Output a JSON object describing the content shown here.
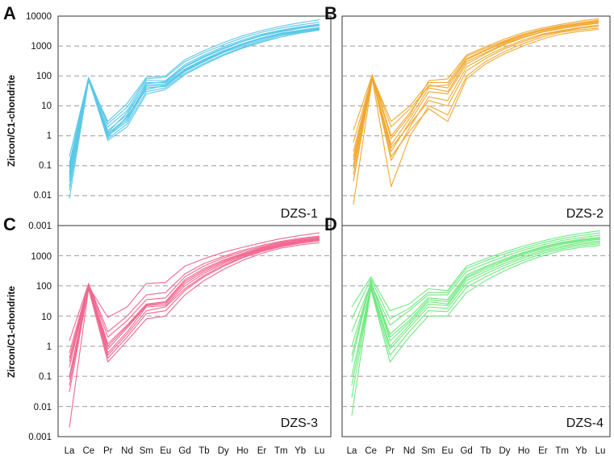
{
  "figure": {
    "y_axis_label": "Zircon/C1-chondrite",
    "y_ticks_top": [
      "10000",
      "1000",
      "100",
      "10",
      "1",
      "0.1",
      "0.01"
    ],
    "y_ticks_bottom": [
      "0.001",
      "1000",
      "100",
      "10",
      "1",
      "0.1",
      "0.01",
      "0.001"
    ],
    "x_ticks": [
      "La",
      "Ce",
      "Pr",
      "Nd",
      "Sm",
      "Eu",
      "Gd",
      "Tb",
      "Dy",
      "Ho",
      "Er",
      "Tm",
      "Yb",
      "Lu"
    ]
  },
  "chart_data": [
    {
      "type": "line",
      "panel_letter": "A",
      "sample": "DZS-1",
      "color": "#5bc8e8",
      "y_scale": "log",
      "ylim": [
        0.001,
        10000
      ],
      "grid": "horizontal dashed",
      "categories": [
        "La",
        "Ce",
        "Pr",
        "Nd",
        "Sm",
        "Eu",
        "Gd",
        "Tb",
        "Dy",
        "Ho",
        "Er",
        "Tm",
        "Yb",
        "Lu"
      ],
      "series": [
        {
          "values": [
            0.008,
            70,
            1.0,
            3.0,
            40,
            45,
            140,
            300,
            600,
            1000,
            1600,
            2400,
            3000,
            3800
          ]
        },
        {
          "values": [
            0.02,
            75,
            1.2,
            4.0,
            50,
            55,
            170,
            360,
            700,
            1200,
            1900,
            2700,
            3400,
            4200
          ]
        },
        {
          "values": [
            0.05,
            80,
            1.5,
            5.0,
            60,
            60,
            200,
            420,
            800,
            1400,
            2200,
            3000,
            3900,
            4800
          ]
        },
        {
          "values": [
            0.1,
            85,
            2.0,
            7.0,
            70,
            70,
            240,
            500,
            950,
            1600,
            2500,
            3400,
            4400,
            5400
          ]
        },
        {
          "values": [
            0.2,
            90,
            2.5,
            9.0,
            80,
            90,
            300,
            600,
            1100,
            1900,
            2900,
            4000,
            5100,
            6300
          ]
        },
        {
          "values": [
            0.03,
            78,
            0.8,
            2.5,
            30,
            40,
            120,
            260,
            520,
            900,
            1450,
            2200,
            2900,
            3600
          ]
        },
        {
          "values": [
            0.06,
            82,
            0.7,
            2.0,
            25,
            35,
            110,
            240,
            480,
            850,
            1350,
            2000,
            2700,
            3400
          ]
        },
        {
          "values": [
            0.12,
            88,
            1.1,
            3.5,
            45,
            50,
            160,
            340,
            670,
            1150,
            1800,
            2600,
            3300,
            4100
          ]
        },
        {
          "values": [
            0.015,
            72,
            3.0,
            12.0,
            90,
            100,
            350,
            700,
            1300,
            2200,
            3300,
            4600,
            6000,
            7500
          ]
        },
        {
          "values": [
            0.04,
            76,
            1.3,
            6.0,
            55,
            65,
            210,
            450,
            850,
            1450,
            2300,
            3200,
            4200,
            5100
          ]
        },
        {
          "values": [
            0.08,
            84,
            0.9,
            4.5,
            35,
            48,
            150,
            320,
            640,
            1100,
            1750,
            2500,
            3200,
            4000
          ]
        }
      ]
    },
    {
      "type": "line",
      "panel_letter": "B",
      "sample": "DZS-2",
      "color": "#f0a830",
      "y_scale": "log",
      "ylim": [
        0.001,
        10000
      ],
      "grid": "horizontal dashed",
      "categories": [
        "La",
        "Ce",
        "Pr",
        "Nd",
        "Sm",
        "Eu",
        "Gd",
        "Tb",
        "Dy",
        "Ho",
        "Er",
        "Tm",
        "Yb",
        "Lu"
      ],
      "series": [
        {
          "values": [
            0.005,
            80,
            0.02,
            1.0,
            10,
            5,
            100,
            300,
            650,
            1200,
            2000,
            2900,
            3500,
            4000
          ]
        },
        {
          "values": [
            0.03,
            90,
            0.15,
            2.0,
            20,
            15,
            200,
            450,
            900,
            1600,
            2500,
            3300,
            4200,
            5000
          ]
        },
        {
          "values": [
            0.3,
            100,
            0.3,
            3.0,
            30,
            25,
            250,
            550,
            1100,
            1900,
            2900,
            3800,
            4800,
            5800
          ]
        },
        {
          "values": [
            1.5,
            110,
            1.0,
            6.0,
            50,
            40,
            350,
            700,
            1300,
            2200,
            3300,
            4300,
            5400,
            6500
          ]
        },
        {
          "values": [
            0.1,
            95,
            3.0,
            10.0,
            60,
            60,
            450,
            850,
            1500,
            2500,
            3600,
            4800,
            6000,
            7300
          ]
        },
        {
          "values": [
            0.05,
            85,
            0.5,
            4.0,
            40,
            30,
            300,
            600,
            1200,
            2000,
            3000,
            4000,
            5000,
            6000
          ]
        },
        {
          "values": [
            0.2,
            105,
            0.8,
            5.0,
            70,
            80,
            500,
            950,
            1700,
            2800,
            4000,
            5300,
            6800,
            8200
          ]
        },
        {
          "values": [
            0.08,
            92,
            0.2,
            1.5,
            8,
            3,
            80,
            250,
            550,
            1000,
            1700,
            2500,
            3100,
            3600
          ]
        },
        {
          "values": [
            0.6,
            98,
            2.0,
            8.0,
            45,
            50,
            380,
            750,
            1400,
            2300,
            3400,
            4500,
            5600,
            6800
          ]
        },
        {
          "values": [
            0.15,
            88,
            0.4,
            2.5,
            15,
            10,
            150,
            380,
            800,
            1400,
            2300,
            3100,
            3900,
            4700
          ]
        }
      ]
    },
    {
      "type": "line",
      "panel_letter": "C",
      "sample": "DZS-3",
      "color": "#f06890",
      "y_scale": "log",
      "ylim": [
        0.001,
        10000
      ],
      "grid": "horizontal dashed",
      "categories": [
        "La",
        "Ce",
        "Pr",
        "Nd",
        "Sm",
        "Eu",
        "Gd",
        "Tb",
        "Dy",
        "Ho",
        "Er",
        "Tm",
        "Yb",
        "Lu"
      ],
      "series": [
        {
          "values": [
            0.002,
            80,
            0.3,
            1.5,
            8,
            10,
            50,
            150,
            350,
            700,
            1200,
            1800,
            2300,
            2700
          ]
        },
        {
          "values": [
            0.03,
            90,
            0.5,
            2.5,
            15,
            20,
            80,
            220,
            480,
            900,
            1450,
            2100,
            2700,
            3200
          ]
        },
        {
          "values": [
            0.1,
            100,
            0.8,
            4.0,
            22,
            25,
            120,
            300,
            600,
            1050,
            1650,
            2300,
            3000,
            3500
          ]
        },
        {
          "values": [
            0.4,
            110,
            1.2,
            5.0,
            25,
            30,
            160,
            380,
            720,
            1200,
            1850,
            2600,
            3300,
            3900
          ]
        },
        {
          "values": [
            1.5,
            120,
            3.0,
            10.0,
            50,
            60,
            250,
            550,
            950,
            1500,
            2200,
            3000,
            3800,
            4500
          ]
        },
        {
          "values": [
            0.05,
            95,
            9.0,
            20.0,
            120,
            130,
            450,
            800,
            1300,
            1900,
            2700,
            3700,
            4700,
            5800
          ]
        },
        {
          "values": [
            0.2,
            105,
            0.6,
            3.0,
            20,
            22,
            100,
            260,
            540,
            980,
            1550,
            2200,
            2850,
            3400
          ]
        },
        {
          "values": [
            0.08,
            98,
            1.0,
            4.5,
            23,
            28,
            140,
            340,
            660,
            1120,
            1750,
            2450,
            3150,
            3700
          ]
        },
        {
          "values": [
            0.6,
            115,
            2.0,
            7.0,
            35,
            40,
            200,
            460,
            840,
            1350,
            2000,
            2800,
            3500,
            4200
          ]
        },
        {
          "values": [
            0.3,
            102,
            0.4,
            2.0,
            12,
            15,
            70,
            200,
            440,
            850,
            1380,
            2000,
            2600,
            3100
          ]
        }
      ]
    },
    {
      "type": "line",
      "panel_letter": "D",
      "sample": "DZS-4",
      "color": "#6ee87e",
      "y_scale": "log",
      "ylim": [
        0.001,
        10000
      ],
      "grid": "horizontal dashed",
      "categories": [
        "La",
        "Ce",
        "Pr",
        "Nd",
        "Sm",
        "Eu",
        "Gd",
        "Tb",
        "Dy",
        "Ho",
        "Er",
        "Tm",
        "Yb",
        "Lu"
      ],
      "series": [
        {
          "values": [
            0.005,
            80,
            0.3,
            2.0,
            10,
            10,
            60,
            150,
            320,
            600,
            1000,
            1500,
            1900,
            2200
          ]
        },
        {
          "values": [
            0.05,
            100,
            0.8,
            4.0,
            20,
            18,
            120,
            250,
            480,
            850,
            1350,
            1900,
            2400,
            2800
          ]
        },
        {
          "values": [
            0.3,
            150,
            1.5,
            6.0,
            30,
            25,
            180,
            350,
            650,
            1100,
            1700,
            2400,
            3000,
            3500
          ]
        },
        {
          "values": [
            3.0,
            120,
            5.0,
            15.0,
            50,
            50,
            300,
            550,
            950,
            1550,
            2300,
            3200,
            4000,
            4800
          ]
        },
        {
          "values": [
            20.0,
            200,
            15.0,
            25.0,
            80,
            70,
            450,
            800,
            1350,
            2100,
            3100,
            4300,
            5500,
            6800
          ]
        },
        {
          "values": [
            0.1,
            110,
            1.0,
            5.0,
            25,
            22,
            150,
            300,
            560,
            960,
            1500,
            2100,
            2700,
            3100
          ]
        },
        {
          "values": [
            1.0,
            130,
            2.5,
            9.0,
            40,
            35,
            230,
            440,
            800,
            1300,
            2000,
            2800,
            3500,
            4100
          ]
        },
        {
          "values": [
            0.02,
            90,
            0.5,
            3.0,
            15,
            14,
            90,
            200,
            400,
            720,
            1180,
            1700,
            2150,
            2500
          ]
        },
        {
          "values": [
            8.0,
            170,
            8.0,
            18.0,
            60,
            60,
            380,
            680,
            1150,
            1800,
            2700,
            3700,
            4700,
            5700
          ]
        },
        {
          "values": [
            0.5,
            140,
            2.0,
            7.0,
            35,
            30,
            200,
            400,
            720,
            1200,
            1850,
            2600,
            3250,
            3800
          ]
        }
      ]
    }
  ]
}
